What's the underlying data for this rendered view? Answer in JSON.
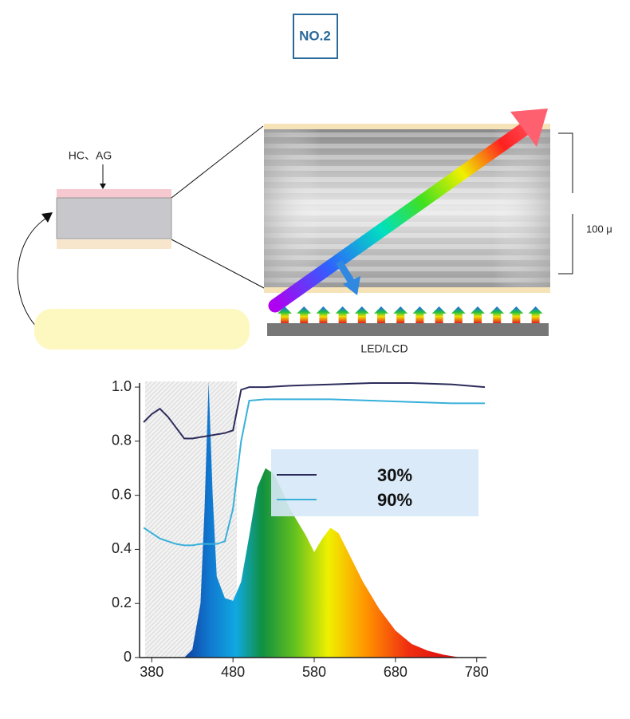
{
  "badge": "NO.2",
  "labels": {
    "coating": "HC、AG",
    "thickness": "100 μ",
    "source": "LED/LCD"
  },
  "chart_data": {
    "type": "line",
    "x": [
      370,
      380,
      390,
      400,
      410,
      420,
      430,
      440,
      450,
      460,
      470,
      480,
      490,
      500,
      520,
      550,
      600,
      650,
      700,
      750,
      790
    ],
    "series": [
      {
        "name": "30%",
        "color": "#2c2c5c",
        "values": [
          0.87,
          0.9,
          0.92,
          0.89,
          0.85,
          0.81,
          0.81,
          0.815,
          0.82,
          0.825,
          0.83,
          0.84,
          0.99,
          1.0,
          1.0,
          1.005,
          1.01,
          1.015,
          1.015,
          1.01,
          1.0
        ]
      },
      {
        "name": "90%",
        "color": "#38b0da",
        "values": [
          0.48,
          0.46,
          0.44,
          0.43,
          0.42,
          0.415,
          0.415,
          0.42,
          0.42,
          0.42,
          0.43,
          0.55,
          0.8,
          0.95,
          0.955,
          0.955,
          0.955,
          0.95,
          0.945,
          0.94,
          0.94
        ]
      }
    ],
    "spectrum": {
      "x": [
        420,
        430,
        440,
        445,
        450,
        455,
        460,
        470,
        480,
        490,
        500,
        510,
        520,
        530,
        540,
        550,
        560,
        570,
        580,
        590,
        600,
        610,
        620,
        640,
        660,
        680,
        700,
        720,
        740,
        760
      ],
      "values": [
        0,
        0.03,
        0.2,
        0.55,
        1.02,
        0.6,
        0.3,
        0.22,
        0.21,
        0.28,
        0.45,
        0.63,
        0.7,
        0.68,
        0.62,
        0.55,
        0.5,
        0.45,
        0.39,
        0.44,
        0.48,
        0.46,
        0.4,
        0.28,
        0.18,
        0.1,
        0.05,
        0.025,
        0.01,
        0
      ]
    },
    "xlim": [
      365,
      792
    ],
    "xticks": [
      380,
      480,
      580,
      680,
      780
    ],
    "ylim": [
      0,
      1.015
    ],
    "yticks": [
      0,
      0.2,
      0.4,
      0.6,
      0.8,
      {
        "value": 1,
        "label": "1.0"
      }
    ]
  }
}
